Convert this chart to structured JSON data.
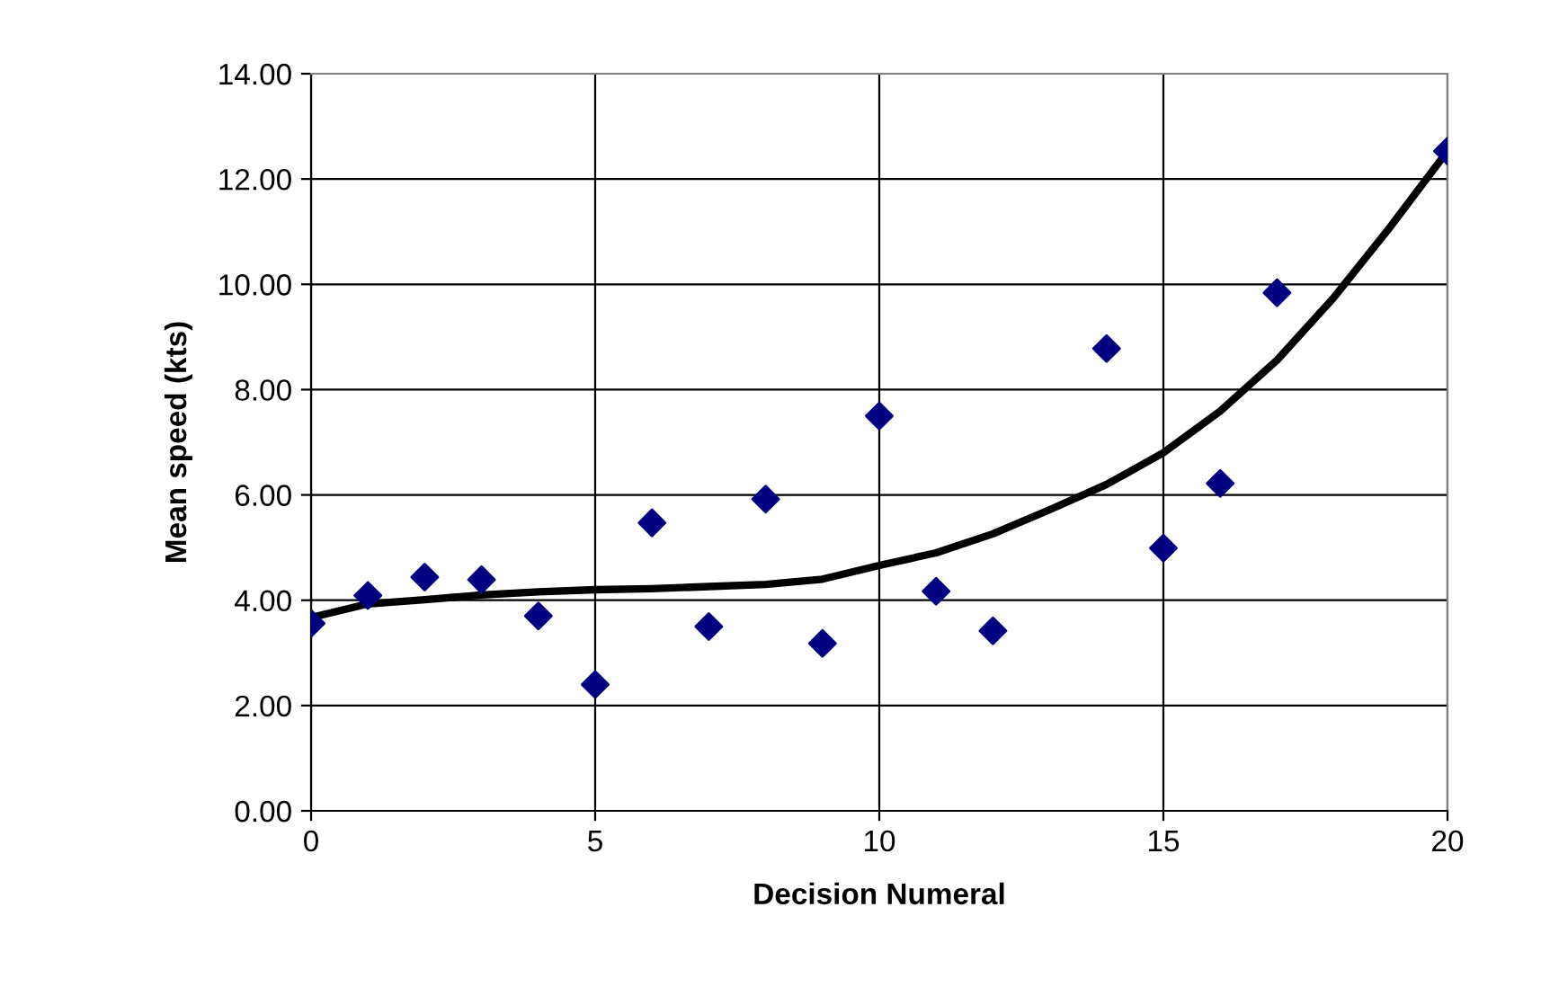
{
  "chart_data": {
    "type": "scatter",
    "xlabel": "Decision Numeral",
    "ylabel": "Mean speed (kts)",
    "xlim": [
      0,
      20
    ],
    "xticks": [
      0,
      5,
      10,
      15,
      20
    ],
    "ylim": [
      0,
      14
    ],
    "yticks": [
      {
        "value": 0,
        "label": "0.00"
      },
      {
        "value": 2,
        "label": "2.00"
      },
      {
        "value": 4,
        "label": "4.00"
      },
      {
        "value": 6,
        "label": "6.00"
      },
      {
        "value": 8,
        "label": "8.00"
      },
      {
        "value": 10,
        "label": "10.00"
      },
      {
        "value": 12,
        "label": "12.00"
      },
      {
        "value": 14,
        "label": "14.00"
      }
    ],
    "grid": true,
    "series": [
      {
        "marker": "diamond",
        "color": "#000080",
        "x": [
          0,
          1,
          2,
          3,
          4,
          5,
          6,
          7,
          8,
          9,
          10,
          11,
          12,
          14,
          15,
          16,
          17,
          20
        ],
        "values": [
          3.56,
          4.09,
          4.44,
          4.39,
          3.7,
          2.4,
          5.47,
          3.5,
          5.92,
          3.18,
          7.5,
          4.17,
          3.42,
          8.78,
          4.99,
          6.22,
          9.84,
          12.53
        ]
      },
      {
        "type": "line",
        "marker": "none",
        "line_style": "solid",
        "color": "#000000",
        "x": [
          0,
          1,
          2,
          3,
          4,
          5,
          6,
          7,
          8,
          9,
          10,
          11,
          12,
          13,
          14,
          15,
          16,
          17,
          18,
          19,
          20
        ],
        "values": [
          3.67,
          3.93,
          4.01,
          4.1,
          4.16,
          4.2,
          4.22,
          4.26,
          4.3,
          4.4,
          4.66,
          4.9,
          5.26,
          5.72,
          6.2,
          6.8,
          7.59,
          8.56,
          9.75,
          11.1,
          12.53
        ]
      }
    ]
  }
}
